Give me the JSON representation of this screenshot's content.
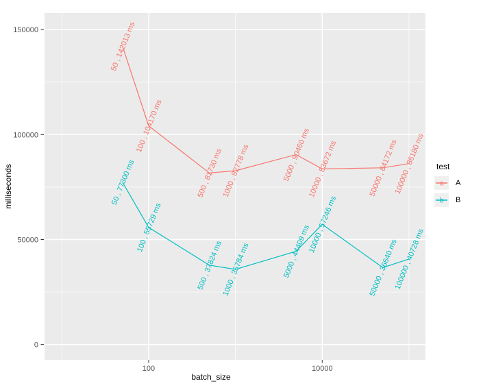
{
  "chart_data": {
    "type": "line",
    "title": "",
    "xlabel": "batch_size",
    "ylabel": "milliseconds",
    "x_scale": "log10",
    "grid": true,
    "x": [
      50,
      100,
      500,
      1000,
      5000,
      10000,
      50000,
      100000
    ],
    "series": [
      {
        "name": "A",
        "key_letter": "a",
        "color": "#F8766D",
        "values": [
          142013,
          104170,
          81730,
          82778,
          90460,
          83672,
          84172,
          86180
        ],
        "point_labels": [
          "50 , 142013 ms",
          "100 , 104170 ms",
          "500 , 81730 ms",
          "1000 , 82778 ms",
          "5000 , 90460 ms",
          "10000 , 83672 ms",
          "50000 , 84172 ms",
          "100000 , 86180 ms"
        ]
      },
      {
        "name": "B",
        "key_letter": "b",
        "color": "#00BFC4",
        "values": [
          77300,
          55729,
          37824,
          35784,
          44409,
          57246,
          36640,
          40728
        ],
        "point_labels": [
          "50 , 77300 ms",
          "100 , 55729 ms",
          "500 , 37824 ms",
          "1000 , 35784 ms",
          "5000 , 44409 ms",
          "10000 , 57246 ms",
          "50000 , 36640 ms",
          "100000 , 40728 ms"
        ]
      }
    ],
    "x_ticks": [
      {
        "value": 100,
        "label": "100"
      },
      {
        "value": 10000,
        "label": "10000"
      }
    ],
    "x_minor_ticks": [
      10,
      1000,
      100000
    ],
    "y_ticks": [
      {
        "value": 0,
        "label": "0"
      },
      {
        "value": 50000,
        "label": "50000"
      },
      {
        "value": 100000,
        "label": "100000"
      },
      {
        "value": 150000,
        "label": "150000"
      }
    ],
    "y_minor_ticks": [
      25000,
      75000,
      125000
    ],
    "ylim": [
      -7300,
      157900
    ],
    "xlim_log10": [
      0.8,
      5.19
    ],
    "point_label_angle_deg": 68,
    "legend": {
      "title": "test",
      "position": "right"
    },
    "colors": {
      "panel_bg": "#EBEBEB",
      "grid": "#FFFFFF",
      "tick_text": "#555555",
      "axis_title": "#000000",
      "tick_mark": "#333333",
      "legend_key_bg": "#F0F0F0",
      "background": "#FFFFFF"
    }
  }
}
